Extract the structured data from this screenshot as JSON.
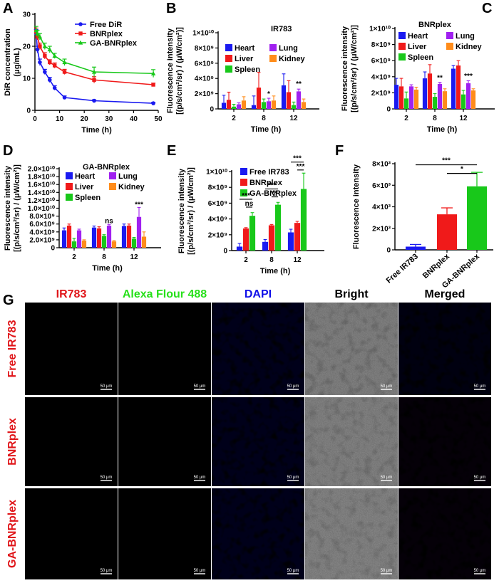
{
  "colors": {
    "blue": "#1a1af0",
    "red": "#f01a1a",
    "green": "#18c81a",
    "purple": "#a020f0",
    "orange": "#ff8c1a"
  },
  "chart_data": [
    {
      "id": "A",
      "panel": "A",
      "type": "line",
      "ylabel_lines": [
        "DiR concentration",
        "(μg/mL)"
      ],
      "xlabel": "Time (h)",
      "xlim": [
        0,
        50
      ],
      "ylim": [
        0,
        30
      ],
      "xticks": [
        0,
        10,
        20,
        30,
        40,
        50
      ],
      "yticks": [
        0,
        10,
        20,
        30
      ],
      "legend_position": "top-right",
      "series": [
        {
          "name": "Free DiR",
          "color": "#1a1af0",
          "marker": "circle",
          "x": [
            0.5,
            1,
            2,
            4,
            6,
            8,
            12,
            24,
            48
          ],
          "y": [
            24,
            19,
            15,
            12,
            9.5,
            7,
            4,
            3,
            2.2
          ],
          "err": [
            1.2,
            1,
            1,
            0.8,
            0.8,
            0.7,
            0.5,
            0.3,
            0.3
          ]
        },
        {
          "name": "BNRplex",
          "color": "#f01a1a",
          "marker": "square",
          "x": [
            0.5,
            1,
            2,
            4,
            6,
            8,
            12,
            24,
            48
          ],
          "y": [
            24.5,
            23,
            20,
            17,
            15,
            14,
            12,
            9.5,
            8
          ],
          "err": [
            1.2,
            1,
            1,
            1,
            0.8,
            0.8,
            0.8,
            1,
            0.5
          ]
        },
        {
          "name": "GA-BNRplex",
          "color": "#18c81a",
          "marker": "triangle",
          "x": [
            0.5,
            1,
            2,
            4,
            6,
            8,
            12,
            24,
            48
          ],
          "y": [
            25,
            24,
            23,
            20,
            19,
            17,
            15,
            12,
            11.5
          ],
          "err": [
            1.2,
            1,
            1,
            1,
            1,
            0.8,
            1,
            1.5,
            1.2
          ]
        }
      ]
    },
    {
      "id": "B",
      "panel": "B",
      "type": "bar",
      "title": "IR783",
      "ylabel_lines": [
        "Fluorescence  intensity",
        "[(p/s/cm²/sr) / (μW/cm²)]"
      ],
      "xlabel": "Time (h)",
      "categories": [
        "2",
        "8",
        "12"
      ],
      "ylim": [
        0,
        10
      ],
      "yticks": [
        0,
        2,
        4,
        6,
        8,
        10
      ],
      "ytick_labels": [
        "0",
        "2×10⁹",
        "4×10⁹",
        "6×10⁹",
        "8×10⁹",
        "1×10¹⁰"
      ],
      "legend_position": "top",
      "series": [
        {
          "name": "Heart",
          "color": "#1a1af0",
          "values": [
            0.8,
            0.5,
            3.1
          ],
          "err": [
            1.0,
            1.2,
            1.5
          ]
        },
        {
          "name": "Liver",
          "color": "#f01a1a",
          "values": [
            1.2,
            2.8,
            2.2
          ],
          "err": [
            1.0,
            2.0,
            1.5
          ]
        },
        {
          "name": "Spleen",
          "color": "#18c81a",
          "values": [
            0.3,
            0.9,
            0.5
          ],
          "err": [
            0.3,
            0.4,
            0.4
          ]
        },
        {
          "name": "Lung",
          "color": "#a020f0",
          "values": [
            0.6,
            1.0,
            2.3
          ],
          "err": [
            0.2,
            0.4,
            0.3
          ]
        },
        {
          "name": "Kidney",
          "color": "#ff8c1a",
          "values": [
            1.1,
            1.1,
            0.9
          ],
          "err": [
            0.5,
            0.6,
            0.4
          ]
        }
      ],
      "annotations": [
        {
          "text": "*",
          "category": "8",
          "series": "Lung",
          "y": 1.7
        },
        {
          "text": "**",
          "category": "12",
          "series": "Lung",
          "y": 3.0
        }
      ]
    },
    {
      "id": "C",
      "panel": "C",
      "type": "bar",
      "title": "BNRplex",
      "ylabel_lines": [
        "Fluorescence  intensity",
        "[(p/s/cm²/sr) / (μW/cm²)]"
      ],
      "xlabel": "Time (h)",
      "categories": [
        "2",
        "8",
        "12"
      ],
      "ylim": [
        0,
        10
      ],
      "yticks": [
        0,
        2,
        4,
        6,
        8,
        10
      ],
      "ytick_labels": [
        "0",
        "2×10⁹",
        "4×10⁹",
        "6×10⁹",
        "8×10⁹",
        "1×10¹⁰"
      ],
      "legend_position": "top",
      "series": [
        {
          "name": "Heart",
          "color": "#1a1af0",
          "values": [
            3.0,
            3.8,
            5.0
          ],
          "err": [
            0.8,
            0.8,
            0.4
          ]
        },
        {
          "name": "Liver",
          "color": "#f01a1a",
          "values": [
            2.8,
            4.4,
            5.4
          ],
          "err": [
            1.0,
            1.1,
            0.6
          ]
        },
        {
          "name": "Spleen",
          "color": "#18c81a",
          "values": [
            1.3,
            1.5,
            1.8
          ],
          "err": [
            0.8,
            0.4,
            0.5
          ]
        },
        {
          "name": "Lung",
          "color": "#a020f0",
          "values": [
            2.8,
            3.1,
            3.2
          ],
          "err": [
            0.2,
            0.2,
            0.3
          ]
        },
        {
          "name": "Kidney",
          "color": "#ff8c1a",
          "values": [
            2.4,
            2.2,
            2.3
          ],
          "err": [
            0.3,
            0.3,
            0.2
          ]
        }
      ],
      "annotations": [
        {
          "text": "**",
          "category": "8",
          "series": "Lung",
          "y": 3.6
        },
        {
          "text": "***",
          "category": "12",
          "series": "Lung",
          "y": 3.8
        }
      ]
    },
    {
      "id": "D",
      "panel": "D",
      "type": "bar",
      "title": "GA-BNRplex",
      "ylabel_lines": [
        "Fluorescence  intensity",
        "[(p/s/cm²/sr) / (μW/cm²)]"
      ],
      "xlabel": "Time (h)",
      "categories": [
        "2",
        "8",
        "12"
      ],
      "ylim": [
        0,
        2.0
      ],
      "yticks": [
        0,
        0.2,
        0.4,
        0.6,
        0.8,
        1.0,
        1.2,
        1.4,
        1.6,
        1.8,
        2.0
      ],
      "ytick_labels": [
        "0",
        "2.0×10⁹",
        "4.0×10⁹",
        "6.0×10⁹",
        "8.0×10⁹",
        "1.0×10¹⁰",
        "1.2×10¹⁰",
        "1.4×10¹⁰",
        "1.6×10¹⁰",
        "1.8×10¹⁰",
        "2.0×10¹⁰"
      ],
      "legend_position": "top",
      "series": [
        {
          "name": "Heart",
          "color": "#1a1af0",
          "values": [
            0.44,
            0.51,
            0.55
          ],
          "err": [
            0.06,
            0.04,
            0.05
          ]
        },
        {
          "name": "Liver",
          "color": "#f01a1a",
          "values": [
            0.56,
            0.49,
            0.56
          ],
          "err": [
            0.04,
            0.04,
            0.04
          ]
        },
        {
          "name": "Spleen",
          "color": "#18c81a",
          "values": [
            0.16,
            0.3,
            0.23
          ],
          "err": [
            0.08,
            0.03,
            0.03
          ]
        },
        {
          "name": "Lung",
          "color": "#a020f0",
          "values": [
            0.44,
            0.56,
            0.78
          ],
          "err": [
            0.03,
            0.03,
            0.24
          ]
        },
        {
          "name": "Kidney",
          "color": "#ff8c1a",
          "values": [
            0.18,
            0.16,
            0.28
          ],
          "err": [
            0.02,
            0.02,
            0.12
          ]
        }
      ],
      "annotations": [
        {
          "text": "ns",
          "category": "8",
          "series": "Lung",
          "y": 0.62
        },
        {
          "text": "***",
          "category": "12",
          "series": "Lung",
          "y": 1.04
        }
      ]
    },
    {
      "id": "E",
      "panel": "E",
      "type": "bar",
      "ylabel_lines": [
        "Fluorescence  intensity",
        "[(p/s/cm²/sr) / (μW/cm²)]"
      ],
      "xlabel": "Time (h)",
      "categories": [
        "2",
        "8",
        "12"
      ],
      "ylim": [
        0,
        10
      ],
      "yticks": [
        0,
        2,
        4,
        6,
        8,
        10
      ],
      "ytick_labels": [
        "0",
        "2×10⁹",
        "4×10⁹",
        "6×10⁹",
        "8×10⁹",
        "1×10¹⁰"
      ],
      "legend_position": "top",
      "series": [
        {
          "name": "Free IR783",
          "color": "#1a1af0",
          "values": [
            0.5,
            1.1,
            2.3
          ],
          "err": [
            0.4,
            0.3,
            0.4
          ]
        },
        {
          "name": "BNRplex",
          "color": "#f01a1a",
          "values": [
            2.8,
            3.2,
            3.5
          ],
          "err": [
            0.1,
            0.1,
            0.2
          ]
        },
        {
          "name": "GA-BNRplex",
          "color": "#18c81a",
          "values": [
            4.4,
            5.8,
            7.8
          ],
          "err": [
            0.4,
            0.3,
            2.0
          ]
        }
      ],
      "annotations": [
        {
          "text": "***",
          "category": "2",
          "from": "Free IR783",
          "to": "GA-BNRplex",
          "y": 6.5
        },
        {
          "text": "ns",
          "category": "2",
          "from": "BNRplex",
          "to": "GA-BNRplex",
          "y": 5.5
        },
        {
          "text": "***",
          "category": "8",
          "from": "Free IR783",
          "to": "GA-BNRplex",
          "y": 7.8
        },
        {
          "text": "**",
          "category": "8",
          "from": "BNRplex",
          "to": "GA-BNRplex",
          "y": 6.8
        },
        {
          "text": "***",
          "category": "12",
          "from": "Free IR783",
          "to": "GA-BNRplex",
          "y": 11.2
        },
        {
          "text": "***",
          "category": "12",
          "from": "BNRplex",
          "to": "GA-BNRplex",
          "y": 10.2
        }
      ]
    },
    {
      "id": "F",
      "panel": "F",
      "type": "bar",
      "ylabel_lines": [
        "Fluorescence intensity"
      ],
      "categories": [
        "Free IR783",
        "BNRplex",
        "GA-BNRplex"
      ],
      "colors": [
        "#1a1af0",
        "#f01a1a",
        "#18c81a"
      ],
      "values": [
        300,
        3300,
        5900
      ],
      "err": [
        200,
        600,
        1300
      ],
      "ylim": [
        0,
        8000
      ],
      "yticks": [
        0,
        2000,
        4000,
        6000,
        8000
      ],
      "ytick_labels": [
        "0",
        "2×10³",
        "4×10³",
        "6×10³",
        "8×10³"
      ],
      "annotations": [
        {
          "text": "***",
          "from": "Free IR783",
          "to": "GA-BNRplex",
          "y": 7900
        },
        {
          "text": "*",
          "from": "BNRplex",
          "to": "GA-BNRplex",
          "y": 7100
        }
      ]
    }
  ],
  "panels": {
    "A": "A",
    "B": "B",
    "C": "C",
    "D": "D",
    "E": "E",
    "F": "F",
    "G": "G"
  },
  "panel_g": {
    "columns": [
      "IR783",
      "Alexa Flour 488",
      "DAPI",
      "Bright",
      "Merged"
    ],
    "column_colors": [
      "#e0161a",
      "#27e01a",
      "#1010e8",
      "#000000",
      "#000000"
    ],
    "rows": [
      "Free IR783",
      "BNRplex",
      "GA-BNRplex"
    ],
    "scale_bar": "50 μm"
  }
}
